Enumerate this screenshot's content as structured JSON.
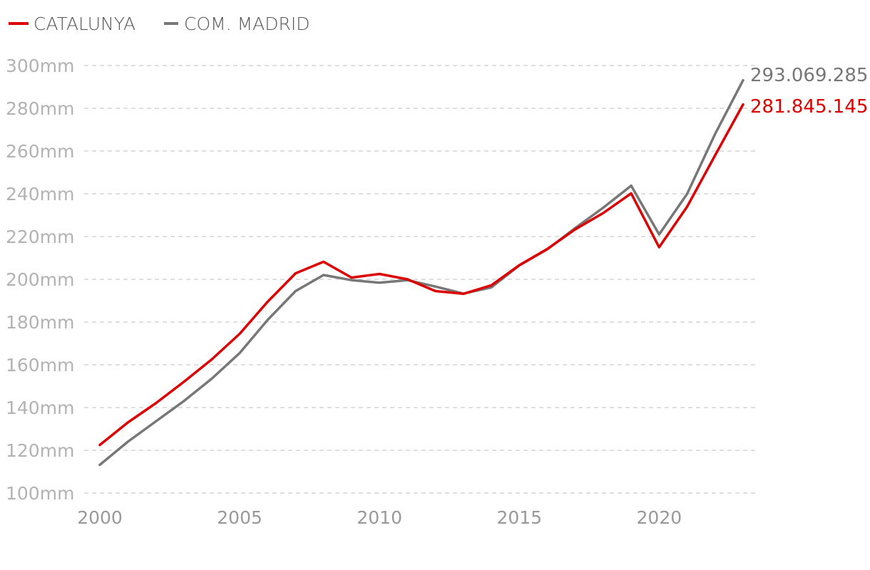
{
  "chart_data": {
    "type": "line",
    "title": "",
    "xlabel": "",
    "ylabel": "",
    "x": [
      2000,
      2001,
      2002,
      2003,
      2004,
      2005,
      2006,
      2007,
      2008,
      2009,
      2010,
      2011,
      2012,
      2013,
      2014,
      2015,
      2016,
      2017,
      2018,
      2019,
      2020,
      2021,
      2022,
      2023
    ],
    "xticks": [
      "2000",
      "2005",
      "2010",
      "2015",
      "2020"
    ],
    "xtick_values": [
      2000,
      2005,
      2010,
      2015,
      2020
    ],
    "ylim": [
      100,
      300
    ],
    "yticks": [
      "100mm",
      "120mm",
      "140mm",
      "160mm",
      "180mm",
      "200mm",
      "220mm",
      "240mm",
      "260mm",
      "280mm",
      "300mm"
    ],
    "ytick_values": [
      100,
      120,
      140,
      160,
      180,
      200,
      220,
      240,
      260,
      280,
      300
    ],
    "grid": true,
    "legend_position": "top-left",
    "series": [
      {
        "name": "CATALUNYA",
        "color": "#dd0000",
        "values": [
          122.5,
          133,
          142,
          152,
          162.5,
          174.5,
          189.5,
          202.8,
          208.2,
          200.8,
          202.5,
          200,
          194.5,
          193.2,
          197.2,
          206.6,
          214.2,
          223.4,
          231,
          240.2,
          215,
          234,
          258,
          281.8
        ],
        "end_label": "281.845.145"
      },
      {
        "name": "COM. MADRID",
        "color": "#777777",
        "values": [
          113.2,
          124,
          133.5,
          143,
          153.5,
          165.5,
          181,
          194.5,
          202,
          199.6,
          198.4,
          199.6,
          196.6,
          193.3,
          196.2,
          206.5,
          214,
          224,
          233.5,
          243.8,
          221,
          240,
          268,
          293.1
        ],
        "end_label": "293.069.285"
      }
    ]
  }
}
